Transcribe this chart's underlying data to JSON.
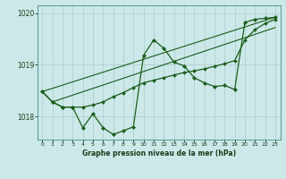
{
  "bg_color": "#cce8e8",
  "grid_color": "#aacccc",
  "line_color": "#1a5c1a",
  "xlabel": "Graphe pression niveau de la mer (hPa)",
  "ylim": [
    1017.55,
    1020.15
  ],
  "xlim": [
    -0.5,
    23.5
  ],
  "yticks": [
    1018,
    1019,
    1020
  ],
  "xticks": [
    0,
    1,
    2,
    3,
    4,
    5,
    6,
    7,
    8,
    9,
    10,
    11,
    12,
    13,
    14,
    15,
    16,
    17,
    18,
    19,
    20,
    21,
    22,
    23
  ],
  "s1_y": [
    1018.48,
    1018.28,
    1018.18,
    1018.18,
    1017.78,
    1018.05,
    1017.78,
    1017.65,
    1017.72,
    1017.8,
    1019.18,
    1019.48,
    1019.32,
    1019.05,
    1018.98,
    1018.75,
    1018.65,
    1018.58,
    1018.6,
    1018.52,
    1019.82,
    1019.88,
    1019.9,
    1019.92
  ],
  "s2_y": [
    1018.48,
    1018.28,
    1018.18,
    1018.18,
    1018.18,
    1018.22,
    1018.28,
    1018.38,
    1018.46,
    1018.56,
    1018.65,
    1018.7,
    1018.75,
    1018.8,
    1018.85,
    1018.88,
    1018.92,
    1018.97,
    1019.02,
    1019.08,
    1019.48,
    1019.68,
    1019.8,
    1019.88
  ],
  "trend1": [
    0,
    23,
    1018.48,
    1019.92
  ],
  "trend2": [
    1,
    23,
    1018.28,
    1019.72
  ]
}
